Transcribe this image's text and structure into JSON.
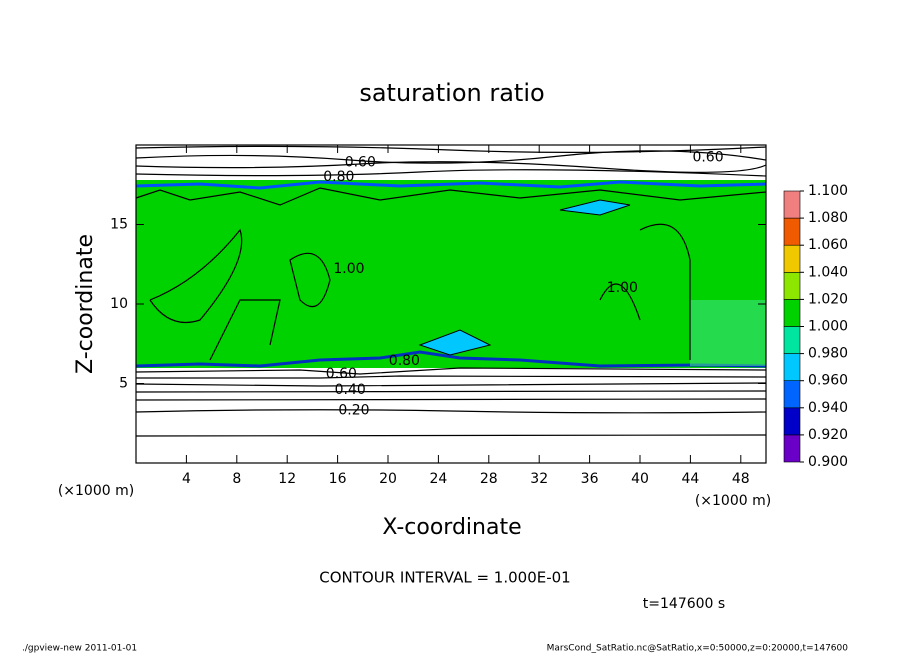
{
  "chart_data": {
    "type": "contour",
    "title": "saturation ratio",
    "xlabel": "X-coordinate",
    "ylabel": "Z-coordinate",
    "x_unit": "(×1000 m)",
    "y_unit": "(×1000 m)",
    "xlim": [
      0,
      50
    ],
    "ylim": [
      0,
      20
    ],
    "xticks": [
      4,
      8,
      12,
      16,
      20,
      24,
      28,
      32,
      36,
      40,
      44,
      48
    ],
    "yticks": [
      5,
      10,
      15
    ],
    "colorbar": {
      "levels": [
        {
          "value": 0.9,
          "label": "0.900"
        },
        {
          "value": 0.92,
          "label": "0.920"
        },
        {
          "value": 0.94,
          "label": "0.940"
        },
        {
          "value": 0.96,
          "label": "0.960"
        },
        {
          "value": 0.98,
          "label": "0.980"
        },
        {
          "value": 1.0,
          "label": "1.000"
        },
        {
          "value": 1.02,
          "label": "1.020"
        },
        {
          "value": 1.04,
          "label": "1.040"
        },
        {
          "value": 1.06,
          "label": "1.060"
        },
        {
          "value": 1.08,
          "label": "1.080"
        },
        {
          "value": 1.1,
          "label": "1.100"
        }
      ],
      "colors": [
        "#6a00c8",
        "#0000c8",
        "#0064ff",
        "#00c8ff",
        "#00e6a0",
        "#00d200",
        "#8ce600",
        "#f0c800",
        "#f05a00",
        "#f08080"
      ]
    },
    "contour_labels": [
      {
        "x": 17.8,
        "y": 18.9,
        "label": "0.60"
      },
      {
        "x": 16.1,
        "y": 18.0,
        "label": "0.80"
      },
      {
        "x": 45.4,
        "y": 19.2,
        "label": "0.60"
      },
      {
        "x": 16.9,
        "y": 12.2,
        "label": "1.00"
      },
      {
        "x": 38.6,
        "y": 11.0,
        "label": "1.00"
      },
      {
        "x": 21.3,
        "y": 6.4,
        "label": "0.80"
      },
      {
        "x": 16.3,
        "y": 5.6,
        "label": "0.60"
      },
      {
        "x": 17.0,
        "y": 4.6,
        "label": "0.40"
      },
      {
        "x": 17.3,
        "y": 3.3,
        "label": "0.20"
      }
    ],
    "annotations": {
      "contour_interval": "CONTOUR INTERVAL = 1.000E-01",
      "time": "t=147600 s",
      "program": "./gpview-new   2011-01-01",
      "source": "MarsCond_SatRatio.nc@SatRatio,x=0:50000,z=0:20000,t=147600"
    }
  }
}
